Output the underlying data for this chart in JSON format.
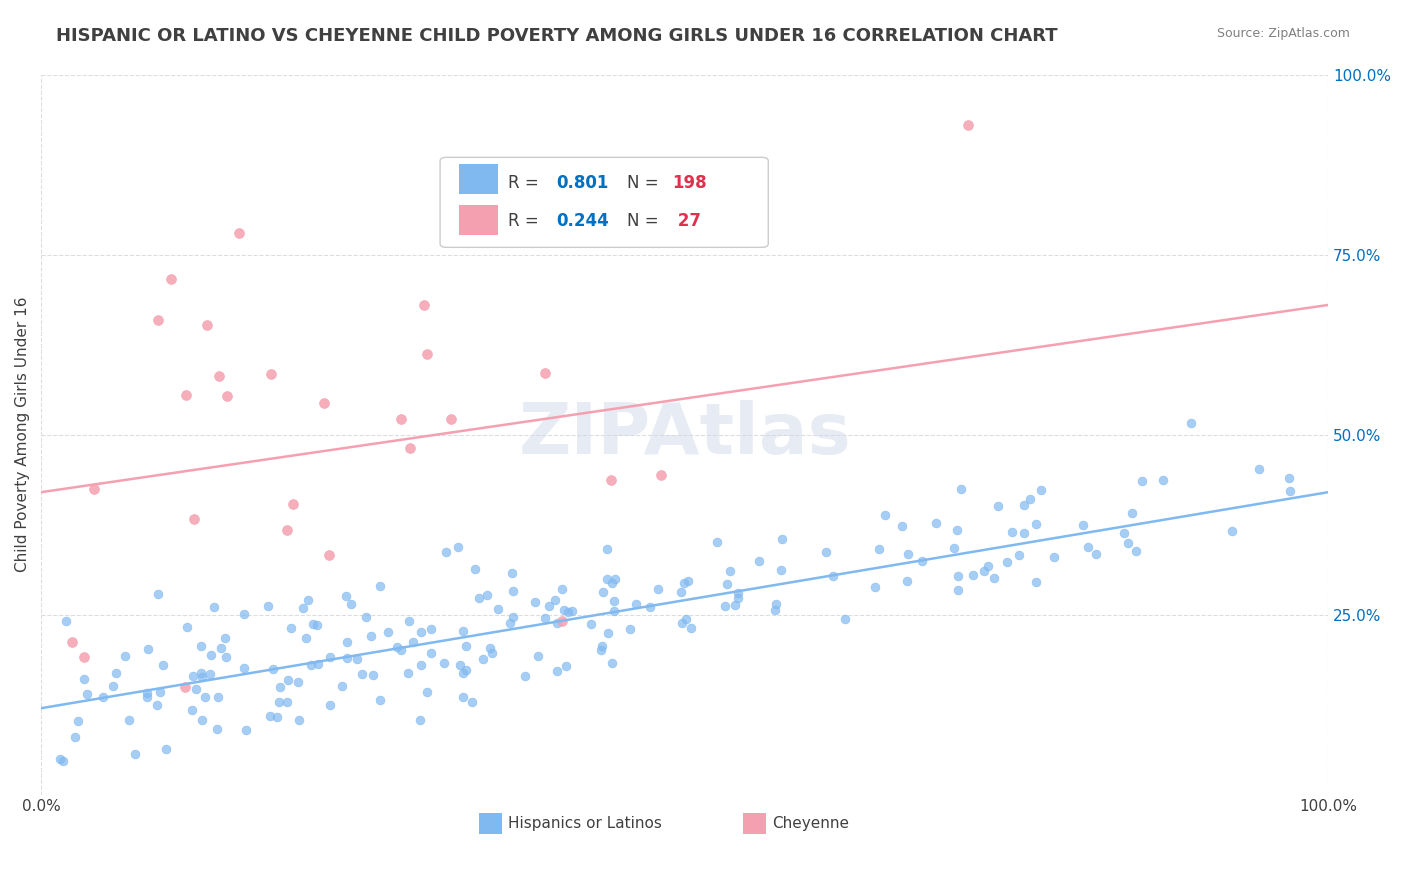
{
  "title": "HISPANIC OR LATINO VS CHEYENNE CHILD POVERTY AMONG GIRLS UNDER 16 CORRELATION CHART",
  "source": "Source: ZipAtlas.com",
  "ylabel": "Child Poverty Among Girls Under 16",
  "watermark": "ZIPAtlas",
  "series": [
    {
      "name": "Hispanics or Latinos",
      "color": "#80b8f0",
      "R": 0.801,
      "N": 198,
      "trend_start_y": 0.12,
      "trend_end_y": 0.42
    },
    {
      "name": "Cheyenne",
      "color": "#f5a0b0",
      "R": 0.244,
      "N": 27,
      "trend_start_y": 0.42,
      "trend_end_y": 0.68
    }
  ],
  "xlim": [
    0,
    1
  ],
  "ylim": [
    0,
    1
  ],
  "y_ticks": [
    0,
    0.25,
    0.5,
    0.75,
    1.0
  ],
  "y_tick_labels": [
    "",
    "25.0%",
    "50.0%",
    "75.0%",
    "100.0%"
  ],
  "grid_color": "#dddddd",
  "background_color": "#ffffff",
  "title_color": "#404040",
  "source_color": "#808080",
  "legend_R_color": "#0070c0",
  "legend_N_color": "#e0304e",
  "watermark_color": "#d0d8e8",
  "watermark_alpha": 0.5
}
